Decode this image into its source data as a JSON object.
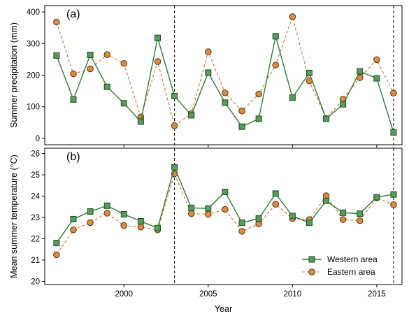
{
  "chart_data": {
    "type": "line",
    "x": [
      1996,
      1997,
      1998,
      1999,
      2000,
      2001,
      2002,
      2003,
      2004,
      2005,
      2006,
      2007,
      2008,
      2009,
      2010,
      2011,
      2012,
      2013,
      2014,
      2015,
      2016
    ],
    "xlabel": "Year",
    "xlim": [
      1995.3,
      2016.5
    ],
    "xticks": [
      "2000",
      "2005",
      "2010",
      "2015"
    ],
    "reference_lines_x": [
      2003,
      2016
    ],
    "legend": {
      "position": "bottom-right",
      "entries": [
        "Western area",
        "Eastern area"
      ]
    },
    "colors": {
      "western": "#2e7d32",
      "western_fill": "#5a9a5c",
      "eastern": "#d0702a",
      "eastern_fill": "#e08a3c"
    },
    "panels": [
      {
        "label": "(a)",
        "ylabel": "Summer precipitation (mm)",
        "ylim": [
          -20,
          420
        ],
        "yticks": [
          "0",
          "100",
          "200",
          "300",
          "400"
        ],
        "series": [
          {
            "name": "Western area",
            "marker": "square",
            "values": [
              262,
              123,
              264,
              163,
              111,
              53,
              318,
              134,
              73,
              208,
              113,
              37,
              62,
              323,
              129,
              207,
              62,
              108,
              212,
              190,
              19
            ]
          },
          {
            "name": "Eastern area",
            "marker": "circle",
            "values": [
              368,
              204,
              220,
              265,
              237,
              68,
              243,
              40,
              78,
              274,
              144,
              87,
              140,
              232,
              385,
              182,
              63,
              124,
              192,
              249,
              143
            ]
          }
        ]
      },
      {
        "label": "(b)",
        "ylabel": "Mean summer temperature (°C)",
        "ylim": [
          19.85,
          26.25
        ],
        "yticks": [
          "20",
          "21",
          "22",
          "23",
          "24",
          "25",
          "26"
        ],
        "series": [
          {
            "name": "Western area",
            "marker": "square",
            "values": [
              21.8,
              22.92,
              23.28,
              23.55,
              23.15,
              22.82,
              22.5,
              25.35,
              23.45,
              23.42,
              24.2,
              22.75,
              22.95,
              24.12,
              23.07,
              22.75,
              23.78,
              23.22,
              23.18,
              23.95,
              24.08
            ]
          },
          {
            "name": "Eastern area",
            "marker": "circle",
            "values": [
              21.25,
              22.42,
              22.76,
              23.2,
              22.62,
              22.55,
              22.42,
              25.05,
              23.18,
              23.15,
              23.38,
              22.35,
              22.7,
              23.62,
              22.95,
              22.9,
              24.02,
              22.9,
              22.85,
              23.92,
              23.6
            ]
          }
        ]
      }
    ]
  }
}
